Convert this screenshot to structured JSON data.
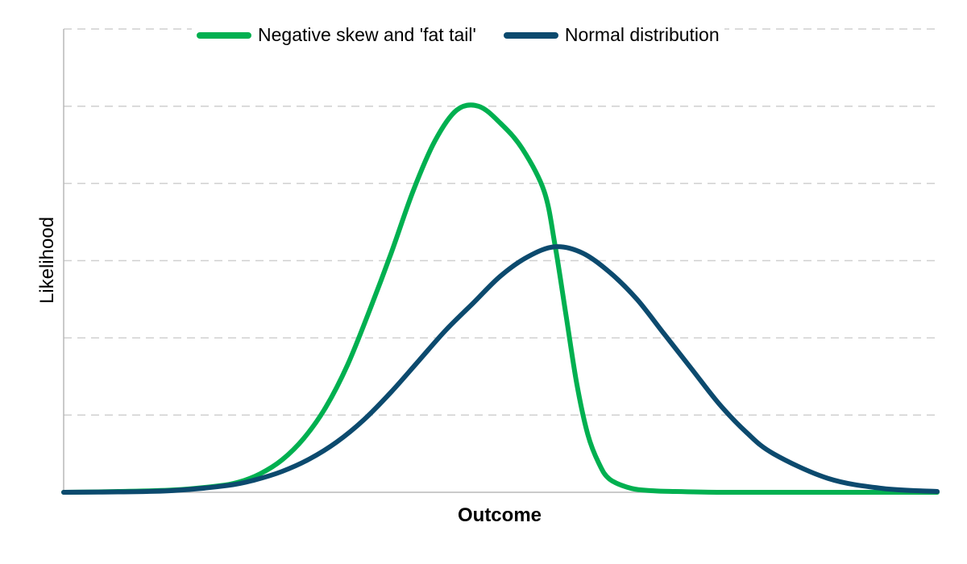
{
  "chart_data": {
    "type": "line",
    "title": "",
    "xlabel": "Outcome",
    "ylabel": "Likelihood",
    "xlim": [
      -4,
      4
    ],
    "ylim": [
      0,
      0.6
    ],
    "gridlines_y": [
      0.1,
      0.2,
      0.3,
      0.4,
      0.5,
      0.6
    ],
    "legend_position": "top-center",
    "series": [
      {
        "name": "Negative skew and 'fat tail'",
        "color": "#00b050",
        "x": [
          -4.0,
          -3.5,
          -3.0,
          -2.6,
          -2.4,
          -2.2,
          -2.0,
          -1.8,
          -1.6,
          -1.4,
          -1.2,
          -1.0,
          -0.8,
          -0.6,
          -0.4,
          -0.2,
          0.0,
          0.2,
          0.4,
          0.5,
          0.6,
          0.7,
          0.8,
          0.9,
          1.0,
          1.2,
          1.4,
          1.6,
          2.0,
          2.5,
          3.0,
          3.5,
          4.0
        ],
        "values": [
          0.0,
          0.001,
          0.003,
          0.008,
          0.013,
          0.024,
          0.042,
          0.07,
          0.11,
          0.165,
          0.235,
          0.31,
          0.39,
          0.455,
          0.495,
          0.5,
          0.478,
          0.445,
          0.39,
          0.32,
          0.23,
          0.14,
          0.075,
          0.038,
          0.017,
          0.005,
          0.002,
          0.001,
          0.0,
          0.0,
          0.0,
          0.0,
          0.0
        ]
      },
      {
        "name": "Normal distribution",
        "color": "#0c4a6e",
        "x": [
          -4.0,
          -3.5,
          -3.0,
          -2.5,
          -2.25,
          -2.0,
          -1.75,
          -1.5,
          -1.25,
          -1.0,
          -0.75,
          -0.5,
          -0.25,
          0.0,
          0.25,
          0.5,
          0.75,
          1.0,
          1.25,
          1.5,
          1.75,
          2.0,
          2.25,
          2.5,
          3.0,
          3.5,
          4.0
        ],
        "values": [
          0.0,
          0.0005,
          0.0022,
          0.0088,
          0.016,
          0.027,
          0.043,
          0.065,
          0.094,
          0.13,
          0.17,
          0.21,
          0.245,
          0.28,
          0.305,
          0.318,
          0.31,
          0.285,
          0.25,
          0.205,
          0.16,
          0.115,
          0.078,
          0.05,
          0.018,
          0.005,
          0.001
        ]
      }
    ]
  }
}
